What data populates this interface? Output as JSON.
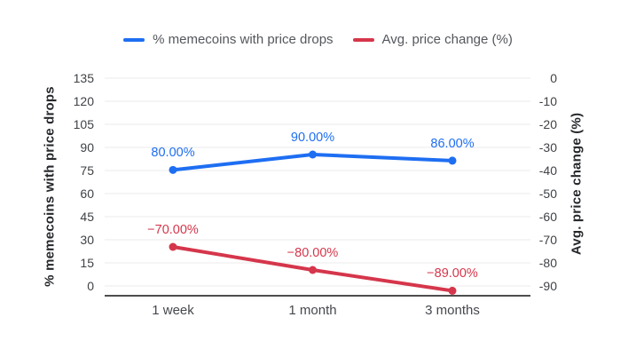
{
  "legend": {
    "items": [
      {
        "label": "% memecoins with price drops",
        "color": "#1e6ef2"
      },
      {
        "label": "Avg. price change (%)",
        "color": "#d5364b"
      }
    ]
  },
  "axes": {
    "left": {
      "title": "% memecoins with price drops",
      "ticks": [
        "135",
        "120",
        "105",
        "90",
        "75",
        "60",
        "45",
        "30",
        "15",
        "0"
      ]
    },
    "right": {
      "title": "Avg. price change (%)",
      "ticks": [
        "0",
        "-10",
        "-20",
        "-30",
        "-40",
        "-50",
        "-60",
        "-70",
        "-80",
        "-90"
      ]
    },
    "x": {
      "labels": [
        "1 week",
        "1 month",
        "3 months"
      ]
    }
  },
  "chart_data": {
    "type": "line",
    "categories": [
      "1 week",
      "1 month",
      "3 months"
    ],
    "series": [
      {
        "name": "% memecoins with price drops",
        "axis": "left",
        "color": "#1e6ef2",
        "values": [
          80,
          90,
          86
        ],
        "point_labels": [
          "80.00%",
          "90.00%",
          "86.00%"
        ]
      },
      {
        "name": "Avg. price change (%)",
        "axis": "right",
        "color": "#d5364b",
        "values": [
          -70,
          -80,
          -89
        ],
        "point_labels": [
          "−70.00%",
          "−80.00%",
          "−89.00%"
        ]
      }
    ],
    "left_axis_range": [
      0,
      135
    ],
    "right_axis_range": [
      -90,
      0
    ],
    "left_axis_label": "% memecoins with price drops",
    "right_axis_label": "Avg. price change (%)",
    "grid": true,
    "legend_position": "top"
  },
  "colors": {
    "background": "#ffffff",
    "grid": "#ebebeb",
    "axis_line": "#4d4d4d",
    "tick_text": "#3f4246",
    "axis_title_text": "#26282b",
    "x_label_text": "#45484d",
    "legend_text": "#54575c"
  }
}
